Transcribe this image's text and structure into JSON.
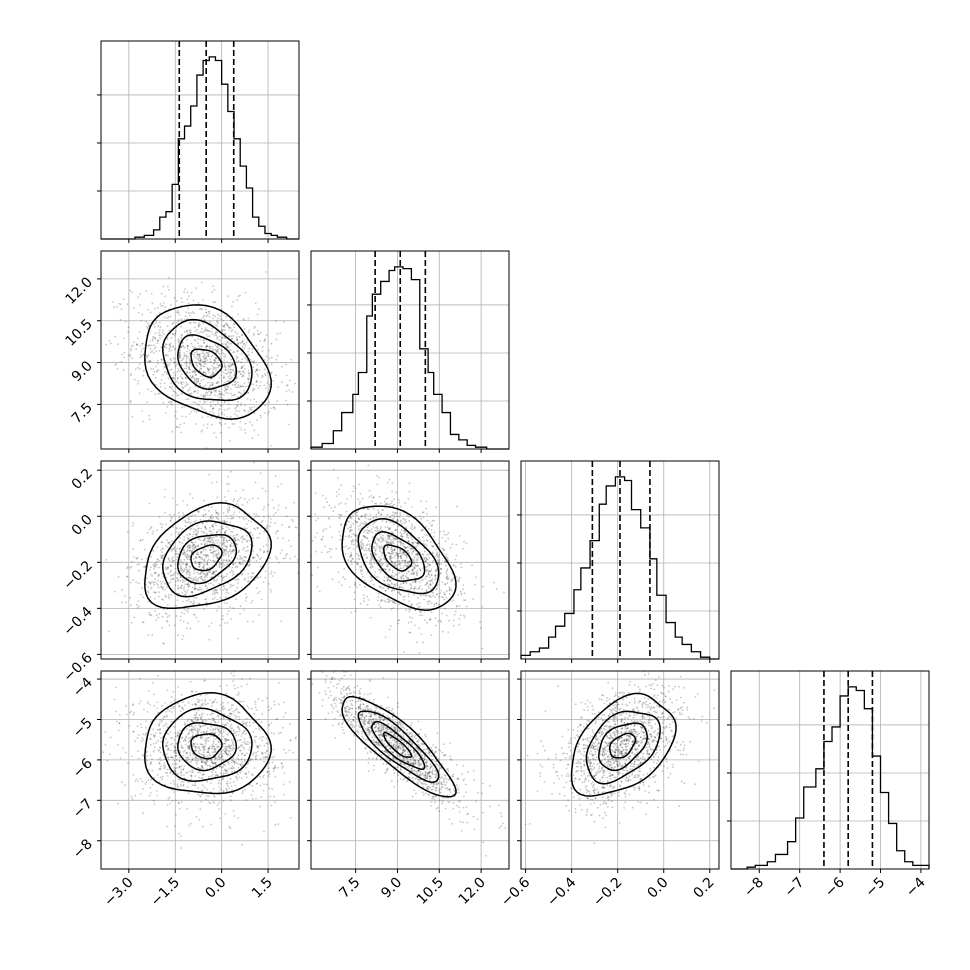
{
  "chart_data": {
    "type": "corner",
    "grid": true,
    "variables": [
      {
        "id": "p0",
        "range": [
          -3.9,
          2.5
        ],
        "ticks": [
          -3.0,
          -1.5,
          0.0,
          1.5
        ],
        "tick_labels": [
          "−3.0",
          "−1.5",
          "0.0",
          "1.5"
        ],
        "quantiles": [
          -1.37,
          -0.5,
          0.39
        ],
        "hist_bin_edges": [
          -3.9,
          -2.8,
          -2.5,
          -2.2,
          -2.0,
          -1.8,
          -1.6,
          -1.4,
          -1.2,
          -1.0,
          -0.8,
          -0.6,
          -0.4,
          -0.2,
          0.0,
          0.2,
          0.4,
          0.6,
          0.8,
          1.0,
          1.2,
          1.4,
          1.6,
          1.8,
          2.1,
          2.5
        ],
        "hist_counts": [
          0.0,
          0.01,
          0.02,
          0.05,
          0.12,
          0.15,
          0.3,
          0.55,
          0.62,
          0.73,
          0.9,
          0.98,
          1.0,
          0.98,
          0.85,
          0.7,
          0.55,
          0.4,
          0.28,
          0.12,
          0.07,
          0.03,
          0.02,
          0.01,
          0.0
        ]
      },
      {
        "id": "p1",
        "range": [
          5.9,
          13.0
        ],
        "ticks": [
          7.5,
          9.0,
          10.5,
          12.0
        ],
        "tick_labels": [
          "7.5",
          "9.0",
          "10.5",
          "12.0"
        ],
        "quantiles": [
          8.2,
          9.1,
          10.0
        ],
        "hist_bin_edges": [
          5.9,
          6.3,
          6.7,
          7.0,
          7.4,
          7.6,
          7.9,
          8.1,
          8.4,
          8.7,
          8.9,
          9.2,
          9.5,
          9.8,
          10.1,
          10.3,
          10.6,
          10.9,
          11.2,
          11.5,
          11.8,
          12.2,
          12.5,
          13.0
        ],
        "hist_counts": [
          0.01,
          0.03,
          0.1,
          0.2,
          0.3,
          0.42,
          0.73,
          0.85,
          0.92,
          0.98,
          1.0,
          0.99,
          0.93,
          0.55,
          0.42,
          0.3,
          0.2,
          0.08,
          0.05,
          0.02,
          0.01,
          0.0,
          0.0
        ]
      },
      {
        "id": "p2",
        "range": [
          -0.62,
          0.24
        ],
        "ticks": [
          -0.6,
          -0.4,
          -0.2,
          0.0,
          0.2
        ],
        "tick_labels": [
          "−0.6",
          "−0.4",
          "−0.2",
          "0.0",
          "0.2"
        ],
        "quantiles": [
          -0.31,
          -0.19,
          -0.06
        ],
        "hist_bin_edges": [
          -0.62,
          -0.58,
          -0.54,
          -0.5,
          -0.47,
          -0.43,
          -0.39,
          -0.36,
          -0.32,
          -0.28,
          -0.25,
          -0.21,
          -0.17,
          -0.14,
          -0.1,
          -0.06,
          -0.03,
          0.01,
          0.05,
          0.08,
          0.12,
          0.16,
          0.2,
          0.24
        ],
        "hist_counts": [
          0.02,
          0.04,
          0.06,
          0.12,
          0.18,
          0.25,
          0.38,
          0.5,
          0.65,
          0.85,
          0.95,
          1.0,
          0.98,
          0.82,
          0.72,
          0.55,
          0.35,
          0.2,
          0.12,
          0.08,
          0.04,
          0.01,
          0.0
        ]
      },
      {
        "id": "p3",
        "range": [
          -8.7,
          -3.8
        ],
        "ticks": [
          -8,
          -7,
          -6,
          -5,
          -4
        ],
        "tick_labels": [
          "−8",
          "−7",
          "−6",
          "−5",
          "−4"
        ],
        "quantiles": [
          -6.4,
          -5.8,
          -5.2
        ],
        "hist_bin_edges": [
          -8.7,
          -8.3,
          -8.1,
          -7.8,
          -7.6,
          -7.3,
          -7.1,
          -6.9,
          -6.6,
          -6.4,
          -6.2,
          -6.0,
          -5.8,
          -5.6,
          -5.4,
          -5.2,
          -5.0,
          -4.8,
          -4.6,
          -4.4,
          -4.2,
          -3.8
        ],
        "hist_counts": [
          0.0,
          0.01,
          0.02,
          0.04,
          0.08,
          0.15,
          0.28,
          0.45,
          0.55,
          0.7,
          0.78,
          0.95,
          1.0,
          0.98,
          0.88,
          0.62,
          0.42,
          0.25,
          0.1,
          0.04,
          0.02
        ]
      }
    ],
    "pairs": [
      {
        "x": "p0",
        "y": "p1",
        "mean": [
          -0.5,
          9.0
        ],
        "std": [
          0.9,
          0.9
        ],
        "corr": -0.3
      },
      {
        "x": "p0",
        "y": "p2",
        "mean": [
          -0.5,
          -0.18
        ],
        "std": [
          0.9,
          0.1
        ],
        "corr": 0.3
      },
      {
        "x": "p1",
        "y": "p2",
        "mean": [
          9.0,
          -0.18
        ],
        "std": [
          0.9,
          0.1
        ],
        "corr": -0.45
      },
      {
        "x": "p0",
        "y": "p3",
        "mean": [
          -0.5,
          -5.65
        ],
        "std": [
          0.9,
          0.55
        ],
        "corr": 0.0
      },
      {
        "x": "p1",
        "y": "p3",
        "mean": [
          9.0,
          -5.65
        ],
        "std": [
          0.9,
          0.55
        ],
        "corr": -0.85
      },
      {
        "x": "p2",
        "y": "p3",
        "mean": [
          -0.18,
          -5.65
        ],
        "std": [
          0.1,
          0.55
        ],
        "corr": 0.4
      }
    ]
  }
}
